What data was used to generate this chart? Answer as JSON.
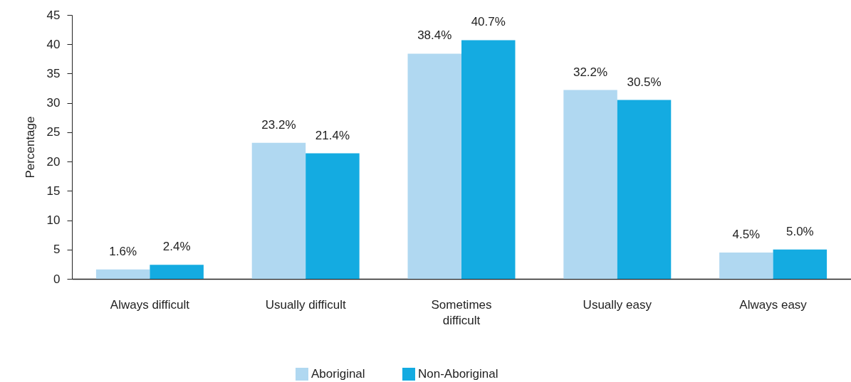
{
  "chart_data": {
    "type": "bar",
    "ylabel": "Percentage",
    "categories": [
      "Always difficult",
      "Usually difficult",
      "Sometimes difficult",
      "Usually easy",
      "Always easy"
    ],
    "series": [
      {
        "name": "Aboriginal",
        "color": "#b0d8f1",
        "values": [
          1.6,
          23.2,
          38.4,
          32.2,
          4.5
        ],
        "value_labels": [
          "1.6%",
          "23.2%",
          "38.4%",
          "32.2%",
          "4.5%"
        ]
      },
      {
        "name": "Non-Aboriginal",
        "color": "#14abe1",
        "values": [
          2.4,
          21.4,
          40.7,
          30.5,
          5.0
        ],
        "value_labels": [
          "2.4%",
          "21.4%",
          "40.7%",
          "30.5%",
          "5.0%"
        ]
      }
    ],
    "ylim": [
      0,
      45
    ],
    "yticks": [
      0,
      5,
      10,
      15,
      20,
      25,
      30,
      35,
      40,
      45
    ],
    "grid": false,
    "legend": "bottom"
  }
}
